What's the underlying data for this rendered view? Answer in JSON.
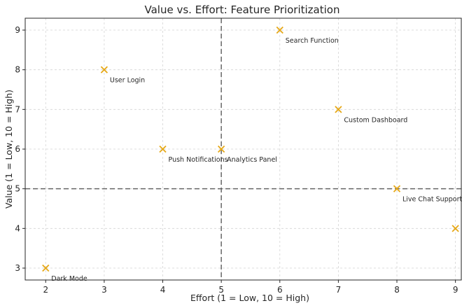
{
  "chart_data": {
    "type": "scatter",
    "title": "Value vs. Effort: Feature Prioritization",
    "xlabel": "Effort (1 = Low, 10 = High)",
    "ylabel": "Value (1 = Low, 10 = High)",
    "xlim": [
      1.65,
      9.1
    ],
    "ylim": [
      2.7,
      9.3
    ],
    "xticks": [
      2,
      3,
      4,
      5,
      6,
      7,
      8,
      9
    ],
    "yticks": [
      3,
      4,
      5,
      6,
      7,
      8,
      9
    ],
    "grid": true,
    "reference_lines": {
      "x": 5,
      "y": 5
    },
    "marker": "x",
    "color": "#e6a817",
    "points": [
      {
        "label": "User Login",
        "x": 3,
        "y": 8
      },
      {
        "label": "Search Function",
        "x": 6,
        "y": 9
      },
      {
        "label": "Custom Dashboard",
        "x": 7,
        "y": 7
      },
      {
        "label": "Push Notifications",
        "x": 4,
        "y": 6
      },
      {
        "label": "Analytics Panel",
        "x": 5,
        "y": 6
      },
      {
        "label": "Live Chat Support",
        "x": 8,
        "y": 5
      },
      {
        "label": "Dark Mode",
        "x": 2,
        "y": 3
      },
      {
        "label": "",
        "x": 9,
        "y": 4
      }
    ]
  }
}
